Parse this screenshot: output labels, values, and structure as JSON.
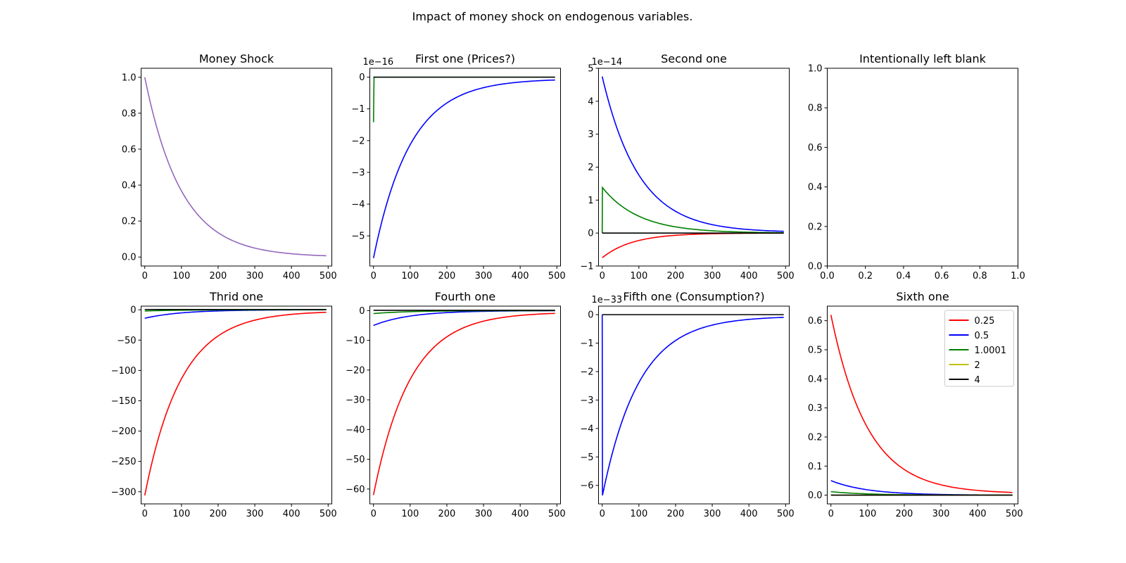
{
  "figure": {
    "title": "Impact of money shock on endogenous variables."
  },
  "colors": {
    "0.25": "#ff0000",
    "0.5": "#0000ff",
    "1.0001": "#008000",
    "2": "#bfbf00",
    "4": "#000000",
    "money": "#9467bd"
  },
  "chart_data": [
    {
      "type": "line",
      "title": "Money Shock",
      "xlim": [
        -10,
        510
      ],
      "ylim": [
        -0.05,
        1.05
      ],
      "xticks": [
        0,
        100,
        200,
        300,
        400,
        500
      ],
      "yticks": [
        0.0,
        0.2,
        0.4,
        0.6,
        0.8,
        1.0
      ],
      "ytick_labels": [
        "0.0",
        "0.2",
        "0.4",
        "0.6",
        "0.8",
        "1.0"
      ],
      "series": [
        {
          "color": "#9467bd",
          "shape": "decay",
          "start": 1.0,
          "end": 0.0,
          "rate": 0.01
        }
      ]
    },
    {
      "type": "line",
      "title": "First one (Prices?)",
      "offset_text": "1e−16",
      "xlim": [
        -10,
        510
      ],
      "ylim": [
        -5.95,
        0.28
      ],
      "xticks": [
        0,
        100,
        200,
        300,
        400,
        500
      ],
      "yticks": [
        0,
        -1,
        -2,
        -3,
        -4,
        -5
      ],
      "ytick_labels": [
        "0",
        "−1",
        "−2",
        "−3",
        "−4",
        "−5"
      ],
      "series": [
        {
          "name": "0.5",
          "color": "#0000ff",
          "shape": "decay",
          "start": -5.7,
          "end": -0.05,
          "rate": 0.01
        },
        {
          "name": "1.0001",
          "color": "#008000",
          "shape": "spike",
          "start": -1.42,
          "end": 0.0
        },
        {
          "name": "4",
          "color": "#000000",
          "shape": "flat",
          "start": 0.0,
          "end": 0.0
        }
      ]
    },
    {
      "type": "line",
      "title": "Second one",
      "offset_text": "1e−14",
      "xlim": [
        -10,
        510
      ],
      "ylim": [
        -1,
        5
      ],
      "xticks": [
        0,
        100,
        200,
        300,
        400,
        500
      ],
      "yticks": [
        -1,
        0,
        1,
        2,
        3,
        4,
        5
      ],
      "ytick_labels": [
        "−1",
        "0",
        "1",
        "2",
        "3",
        "4",
        "5"
      ],
      "series": [
        {
          "name": "0.25",
          "color": "#ff0000",
          "shape": "decay",
          "start": -0.75,
          "end": 0.0,
          "rate": 0.012
        },
        {
          "name": "0.5",
          "color": "#0000ff",
          "shape": "decay",
          "start": 4.75,
          "end": 0.02,
          "rate": 0.01
        },
        {
          "name": "1.0001",
          "color": "#008000",
          "shape": "jumpdecay",
          "start": 1.38,
          "end": 0.0,
          "rate": 0.01
        },
        {
          "name": "4",
          "color": "#000000",
          "shape": "flat",
          "start": 0.0,
          "end": 0.0
        }
      ]
    },
    {
      "type": "line",
      "title": "Intentionally left blank",
      "xlim": [
        0,
        1
      ],
      "ylim": [
        0,
        1
      ],
      "xticks": [
        0,
        0.2,
        0.4,
        0.6,
        0.8,
        1.0
      ],
      "xtick_labels": [
        "0.0",
        "0.2",
        "0.4",
        "0.6",
        "0.8",
        "1.0"
      ],
      "yticks": [
        0,
        0.2,
        0.4,
        0.6,
        0.8,
        1.0
      ],
      "ytick_labels": [
        "0.0",
        "0.2",
        "0.4",
        "0.6",
        "0.8",
        "1.0"
      ],
      "series": []
    },
    {
      "type": "line",
      "title": "Thrid one",
      "xlim": [
        -10,
        510
      ],
      "ylim": [
        -320,
        6
      ],
      "xticks": [
        0,
        100,
        200,
        300,
        400,
        500
      ],
      "yticks": [
        0,
        -50,
        -100,
        -150,
        -200,
        -250,
        -300
      ],
      "ytick_labels": [
        "0",
        "−50",
        "−100",
        "−150",
        "−200",
        "−250",
        "−300"
      ],
      "series": [
        {
          "name": "0.25",
          "color": "#ff0000",
          "shape": "decay",
          "start": -306,
          "end": -2,
          "rate": 0.01
        },
        {
          "name": "0.5",
          "color": "#0000ff",
          "shape": "decay",
          "start": -14,
          "end": 0,
          "rate": 0.01
        },
        {
          "name": "1.0001",
          "color": "#008000",
          "shape": "decay",
          "start": -2,
          "end": 0,
          "rate": 0.01
        },
        {
          "name": "4",
          "color": "#000000",
          "shape": "flat",
          "start": 0.5,
          "end": 0.5
        }
      ]
    },
    {
      "type": "line",
      "title": "Fourth one",
      "xlim": [
        -10,
        510
      ],
      "ylim": [
        -65,
        1.5
      ],
      "xticks": [
        0,
        100,
        200,
        300,
        400,
        500
      ],
      "yticks": [
        0,
        -10,
        -20,
        -30,
        -40,
        -50,
        -60
      ],
      "ytick_labels": [
        "0",
        "−10",
        "−20",
        "−30",
        "−40",
        "−50",
        "−60"
      ],
      "series": [
        {
          "name": "0.25",
          "color": "#ff0000",
          "shape": "decay",
          "start": -62,
          "end": -0.5,
          "rate": 0.01
        },
        {
          "name": "0.5",
          "color": "#0000ff",
          "shape": "decay",
          "start": -5,
          "end": 0,
          "rate": 0.01
        },
        {
          "name": "1.0001",
          "color": "#008000",
          "shape": "decay",
          "start": -1,
          "end": 0,
          "rate": 0.01
        },
        {
          "name": "4",
          "color": "#000000",
          "shape": "flat",
          "start": 0.1,
          "end": 0.1
        }
      ]
    },
    {
      "type": "line",
      "title": "Fifth one (Consumption?)",
      "offset_text": "1e−33",
      "xlim": [
        -10,
        510
      ],
      "ylim": [
        -6.65,
        0.3
      ],
      "xticks": [
        0,
        100,
        200,
        300,
        400,
        500
      ],
      "yticks": [
        0,
        -1,
        -2,
        -3,
        -4,
        -5,
        -6
      ],
      "ytick_labels": [
        "0",
        "−1",
        "−2",
        "−3",
        "−4",
        "−5",
        "−6"
      ],
      "series": [
        {
          "name": "0.5",
          "color": "#0000ff",
          "shape": "spikedecay",
          "start": -6.35,
          "end": -0.05,
          "rate": 0.01
        },
        {
          "name": "4",
          "color": "#000000",
          "shape": "flat",
          "start": 0.0,
          "end": 0.0
        }
      ]
    },
    {
      "type": "line",
      "title": "Sixth one",
      "xlim": [
        -10,
        510
      ],
      "ylim": [
        -0.03,
        0.65
      ],
      "xticks": [
        0,
        100,
        200,
        300,
        400,
        500
      ],
      "yticks": [
        0.0,
        0.1,
        0.2,
        0.3,
        0.4,
        0.5,
        0.6
      ],
      "ytick_labels": [
        "0.0",
        "0.1",
        "0.2",
        "0.3",
        "0.4",
        "0.5",
        "0.6"
      ],
      "legend": "upper right",
      "series": [
        {
          "name": "0.25",
          "color": "#ff0000",
          "shape": "decay",
          "start": 0.62,
          "end": 0.005,
          "rate": 0.01
        },
        {
          "name": "0.5",
          "color": "#0000ff",
          "shape": "decay",
          "start": 0.05,
          "end": 0.0,
          "rate": 0.01
        },
        {
          "name": "1.0001",
          "color": "#008000",
          "shape": "decay",
          "start": 0.012,
          "end": 0.0,
          "rate": 0.01
        },
        {
          "name": "2",
          "color": "#bfbf00",
          "shape": "flat",
          "start": 0.0,
          "end": 0.0
        },
        {
          "name": "4",
          "color": "#000000",
          "shape": "flat",
          "start": 0.0,
          "end": 0.0
        }
      ]
    }
  ]
}
